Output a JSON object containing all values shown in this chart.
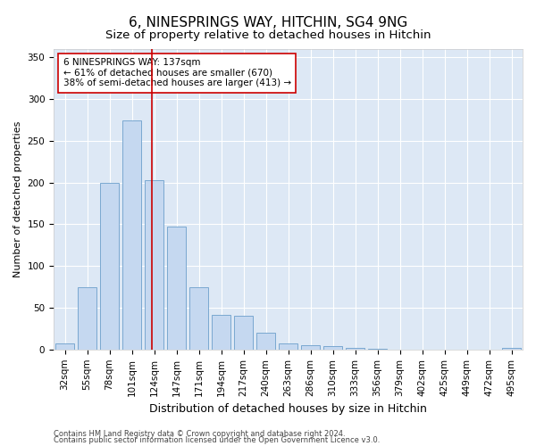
{
  "title": "6, NINESPRINGS WAY, HITCHIN, SG4 9NG",
  "subtitle": "Size of property relative to detached houses in Hitchin",
  "xlabel": "Distribution of detached houses by size in Hitchin",
  "ylabel": "Number of detached properties",
  "categories": [
    "32sqm",
    "55sqm",
    "78sqm",
    "101sqm",
    "124sqm",
    "147sqm",
    "171sqm",
    "194sqm",
    "217sqm",
    "240sqm",
    "263sqm",
    "286sqm",
    "310sqm",
    "333sqm",
    "356sqm",
    "379sqm",
    "402sqm",
    "425sqm",
    "449sqm",
    "472sqm",
    "495sqm"
  ],
  "values": [
    7,
    75,
    200,
    275,
    203,
    147,
    75,
    42,
    40,
    20,
    7,
    5,
    4,
    2,
    1,
    0,
    0,
    0,
    0,
    0,
    2
  ],
  "bar_color": "#c5d8f0",
  "bar_edge_color": "#7aa8d0",
  "vline_color": "#cc0000",
  "annotation_line1": "6 NINESPRINGS WAY: 137sqm",
  "annotation_line2": "← 61% of detached houses are smaller (670)",
  "annotation_line3": "38% of semi-detached houses are larger (413) →",
  "annotation_box_facecolor": "white",
  "annotation_box_edgecolor": "#cc0000",
  "ylim": [
    0,
    360
  ],
  "yticks": [
    0,
    50,
    100,
    150,
    200,
    250,
    300,
    350
  ],
  "bg_color": "#dde8f5",
  "grid_color": "white",
  "title_fontsize": 11,
  "subtitle_fontsize": 9.5,
  "ylabel_fontsize": 8,
  "xlabel_fontsize": 9,
  "annotation_fontsize": 7.5,
  "tick_fontsize": 7.5,
  "footer1": "Contains HM Land Registry data © Crown copyright and database right 2024.",
  "footer2": "Contains public sector information licensed under the Open Government Licence v3.0.",
  "footer_fontsize": 6,
  "vline_x_index": 4
}
